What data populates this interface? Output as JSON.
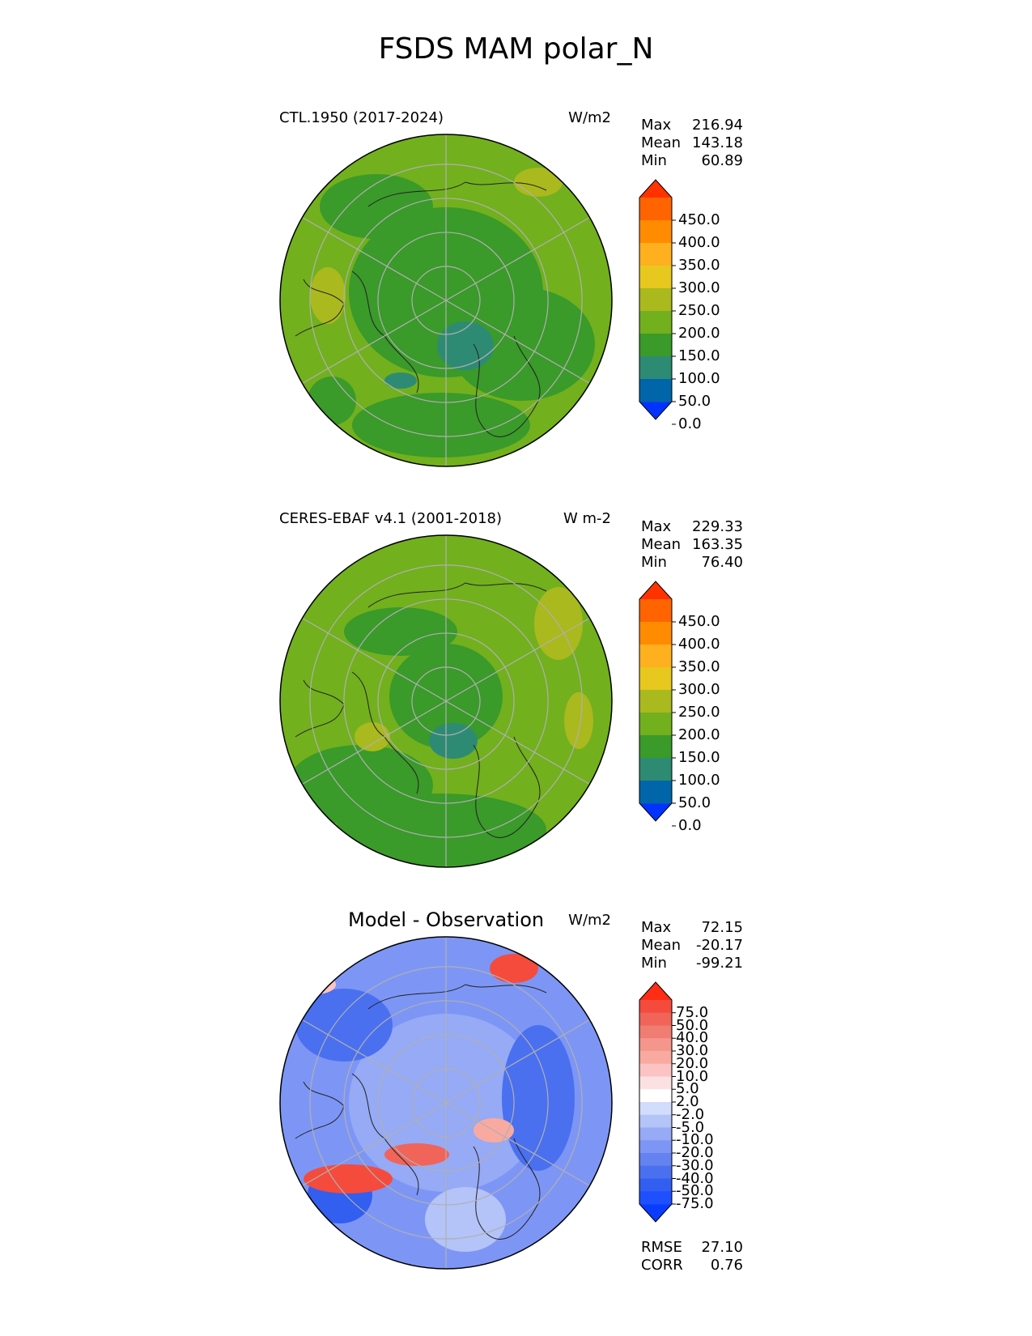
{
  "figure": {
    "title": "FSDS MAM polar_N"
  },
  "panels": [
    {
      "id": "test",
      "title": "CTL.1950 (2017-2024)",
      "units": "W/m2",
      "stats": [
        {
          "label": "Max",
          "value": "216.94"
        },
        {
          "label": "Mean",
          "value": "143.18"
        },
        {
          "label": "Min",
          "value": "60.89"
        }
      ],
      "colorbar": {
        "colors": [
          "#0033ff",
          "#0066aa",
          "#2e8b73",
          "#3a9a2a",
          "#72b01e",
          "#aab91e",
          "#e6c81e",
          "#ffb01e",
          "#ff8c00",
          "#ff6400",
          "#ff3200"
        ],
        "tick_labels": [
          "450.0",
          "400.0",
          "350.0",
          "300.0",
          "250.0",
          "200.0",
          "150.0",
          "100.0",
          "50.0",
          "0.0"
        ]
      }
    },
    {
      "id": "ref",
      "title": "CERES-EBAF v4.1 (2001-2018)",
      "units": "W m-2",
      "stats": [
        {
          "label": "Max",
          "value": "229.33"
        },
        {
          "label": "Mean",
          "value": "163.35"
        },
        {
          "label": "Min",
          "value": "76.40"
        }
      ],
      "colorbar": {
        "colors": [
          "#0033ff",
          "#0066aa",
          "#2e8b73",
          "#3a9a2a",
          "#72b01e",
          "#aab91e",
          "#e6c81e",
          "#ffb01e",
          "#ff8c00",
          "#ff6400",
          "#ff3200"
        ],
        "tick_labels": [
          "450.0",
          "400.0",
          "350.0",
          "300.0",
          "250.0",
          "200.0",
          "150.0",
          "100.0",
          "50.0",
          "0.0"
        ]
      }
    },
    {
      "id": "diff",
      "title": "Model - Observation",
      "units": "W/m2",
      "stats": [
        {
          "label": "Max",
          "value": "72.15"
        },
        {
          "label": "Mean",
          "value": "-20.17"
        },
        {
          "label": "Min",
          "value": "-99.21"
        }
      ],
      "extra_stats": [
        {
          "label": "RMSE",
          "value": "27.10"
        },
        {
          "label": "CORR",
          "value": "0.76"
        }
      ],
      "colorbar": {
        "colors": [
          "#0a3cff",
          "#1e50ff",
          "#325ff0",
          "#4a70f0",
          "#6482f0",
          "#7d96f5",
          "#96aaf5",
          "#b4c3f8",
          "#d2dcfb",
          "#ffffff",
          "#fbe1e1",
          "#fbc3c3",
          "#f8aaa0",
          "#f5968c",
          "#f07d73",
          "#f0645a",
          "#f54b3c",
          "#ff2d14"
        ],
        "tick_labels": [
          "75.0",
          "50.0",
          "40.0",
          "30.0",
          "20.0",
          "10.0",
          "5.0",
          "2.0",
          "-2.0",
          "-5.0",
          "-10.0",
          "-20.0",
          "-30.0",
          "-40.0",
          "-50.0",
          "-75.0"
        ]
      }
    }
  ],
  "chart_data": [
    {
      "type": "heatmap",
      "projection": "north polar stereographic",
      "title": "CTL.1950 (2017-2024)",
      "units": "W/m2",
      "levels": [
        0,
        50,
        100,
        150,
        200,
        250,
        300,
        350,
        400,
        450
      ],
      "extend": "both",
      "stats": {
        "max": 216.94,
        "mean": 143.18,
        "min": 60.89
      },
      "field_description_levels": {
        "dominant_range": [
          150,
          200
        ],
        "arctic_ocean_range": [
          100,
          150
        ],
        "min_region_range": [
          50,
          100
        ]
      }
    },
    {
      "type": "heatmap",
      "projection": "north polar stereographic",
      "title": "CERES-EBAF v4.1 (2001-2018)",
      "units": "W m-2",
      "levels": [
        0,
        50,
        100,
        150,
        200,
        250,
        300,
        350,
        400,
        450
      ],
      "extend": "both",
      "stats": {
        "max": 229.33,
        "mean": 163.35,
        "min": 76.4
      }
    },
    {
      "type": "heatmap",
      "projection": "north polar stereographic",
      "title": "Model - Observation",
      "units": "W/m2",
      "levels": [
        -75,
        -50,
        -40,
        -30,
        -20,
        -10,
        -5,
        -2,
        2,
        5,
        10,
        20,
        30,
        40,
        50,
        75
      ],
      "extend": "both",
      "stats": {
        "max": 72.15,
        "mean": -20.17,
        "min": -99.21,
        "rmse": 27.1,
        "corr": 0.76
      }
    }
  ]
}
